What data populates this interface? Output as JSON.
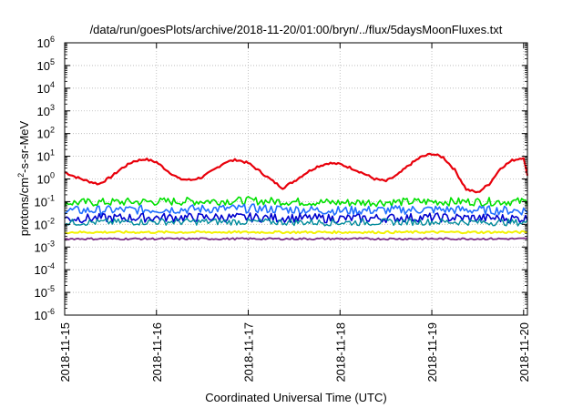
{
  "chart_data": {
    "type": "line",
    "title": "/data/run/goesPlots/archive/2018-11-20/01:00/bryn/../flux/5daysMoonFluxes.txt",
    "xlabel": "Coordinated Universal Time (UTC)",
    "ylabel": {
      "pre": "protons/cm",
      "sup": "2",
      "post": "-s-sr-MeV"
    },
    "yscale": "log",
    "ylim_exp": [
      -6,
      6
    ],
    "y_ticks": [
      {
        "base": "10",
        "exp": "-6"
      },
      {
        "base": "10",
        "exp": "-5"
      },
      {
        "base": "10",
        "exp": "-4"
      },
      {
        "base": "10",
        "exp": "-3"
      },
      {
        "base": "10",
        "exp": "-2"
      },
      {
        "base": "10",
        "exp": "-1"
      },
      {
        "base": "10",
        "exp": "0"
      },
      {
        "base": "10",
        "exp": "1"
      },
      {
        "base": "10",
        "exp": "2"
      },
      {
        "base": "10",
        "exp": "3"
      },
      {
        "base": "10",
        "exp": "4"
      },
      {
        "base": "10",
        "exp": "5"
      },
      {
        "base": "10",
        "exp": "6"
      }
    ],
    "xlim": [
      "2018-11-15",
      "2018-11-20 01:00"
    ],
    "x_ticks": [
      "2018-11-15",
      "2018-11-16",
      "2018-11-17",
      "2018-11-18",
      "2018-11-19",
      "2018-11-20"
    ],
    "grid": true,
    "series": [
      {
        "color": "#e8000b",
        "width": 2.2,
        "x": [
          "2018-11-15 00:00",
          "2018-11-15 03:00",
          "2018-11-15 06:00",
          "2018-11-15 09:00",
          "2018-11-15 12:00",
          "2018-11-15 15:00",
          "2018-11-15 18:00",
          "2018-11-15 21:00",
          "2018-11-16 00:00",
          "2018-11-16 03:00",
          "2018-11-16 06:00",
          "2018-11-16 09:00",
          "2018-11-16 12:00",
          "2018-11-16 15:00",
          "2018-11-16 18:00",
          "2018-11-16 21:00",
          "2018-11-17 00:00",
          "2018-11-17 03:00",
          "2018-11-17 06:00",
          "2018-11-17 09:00",
          "2018-11-17 12:00",
          "2018-11-17 15:00",
          "2018-11-17 18:00",
          "2018-11-17 21:00",
          "2018-11-18 00:00",
          "2018-11-18 03:00",
          "2018-11-18 06:00",
          "2018-11-18 09:00",
          "2018-11-18 12:00",
          "2018-11-18 15:00",
          "2018-11-18 18:00",
          "2018-11-18 21:00",
          "2018-11-19 00:00",
          "2018-11-19 03:00",
          "2018-11-19 06:00",
          "2018-11-19 09:00",
          "2018-11-19 12:00",
          "2018-11-19 15:00",
          "2018-11-19 18:00",
          "2018-11-19 21:00",
          "2018-11-20 00:00",
          "2018-11-20 01:00"
        ],
        "y": [
          2.0,
          1.2,
          0.8,
          0.6,
          1.2,
          3.0,
          6.0,
          7.5,
          5.5,
          2.2,
          1.0,
          0.9,
          1.2,
          2.5,
          5.5,
          7.0,
          5.0,
          2.2,
          0.9,
          0.4,
          0.8,
          1.8,
          3.5,
          5.0,
          4.5,
          3.0,
          1.8,
          1.0,
          0.8,
          1.5,
          4.0,
          9.0,
          13.0,
          9.0,
          2.5,
          0.35,
          0.25,
          0.6,
          3.0,
          6.5,
          9.0,
          1.3
        ],
        "noise": 0.05
      },
      {
        "color": "#00e000",
        "width": 1.6,
        "x": [
          "2018-11-15 00:00",
          "2018-11-16 00:00",
          "2018-11-17 00:00",
          "2018-11-18 00:00",
          "2018-11-19 00:00",
          "2018-11-20 01:00"
        ],
        "y": [
          0.09,
          0.1,
          0.11,
          0.09,
          0.1,
          0.1
        ],
        "noise": 0.18
      },
      {
        "color": "#1e6eff",
        "width": 1.6,
        "x": [
          "2018-11-15 00:00",
          "2018-11-16 00:00",
          "2018-11-17 00:00",
          "2018-11-18 00:00",
          "2018-11-19 00:00",
          "2018-11-20 01:00"
        ],
        "y": [
          0.04,
          0.045,
          0.05,
          0.04,
          0.045,
          0.04
        ],
        "noise": 0.2
      },
      {
        "color": "#0000cd",
        "width": 1.6,
        "x": [
          "2018-11-15 00:00",
          "2018-11-16 00:00",
          "2018-11-17 00:00",
          "2018-11-18 00:00",
          "2018-11-19 00:00",
          "2018-11-20 01:00"
        ],
        "y": [
          0.018,
          0.02,
          0.02,
          0.018,
          0.02,
          0.018
        ],
        "noise": 0.2
      },
      {
        "color": "#008b9b",
        "width": 1.4,
        "x": [
          "2018-11-15 00:00",
          "2018-11-16 00:00",
          "2018-11-17 00:00",
          "2018-11-18 00:00",
          "2018-11-19 00:00",
          "2018-11-20 01:00"
        ],
        "y": [
          0.012,
          0.013,
          0.013,
          0.012,
          0.013,
          0.012
        ],
        "noise": 0.15
      },
      {
        "color": "#f2f200",
        "width": 2.0,
        "x": [
          "2018-11-15 00:00",
          "2018-11-16 00:00",
          "2018-11-17 00:00",
          "2018-11-18 00:00",
          "2018-11-19 00:00",
          "2018-11-20 01:00"
        ],
        "y": [
          0.0045,
          0.0045,
          0.0045,
          0.0045,
          0.0045,
          0.0045
        ],
        "noise": 0.05
      },
      {
        "color": "#7b2f86",
        "width": 1.8,
        "x": [
          "2018-11-15 00:00",
          "2018-11-16 00:00",
          "2018-11-17 00:00",
          "2018-11-18 00:00",
          "2018-11-19 00:00",
          "2018-11-20 01:00"
        ],
        "y": [
          0.0023,
          0.0023,
          0.0023,
          0.0023,
          0.0023,
          0.0023
        ],
        "noise": 0.04
      }
    ]
  }
}
